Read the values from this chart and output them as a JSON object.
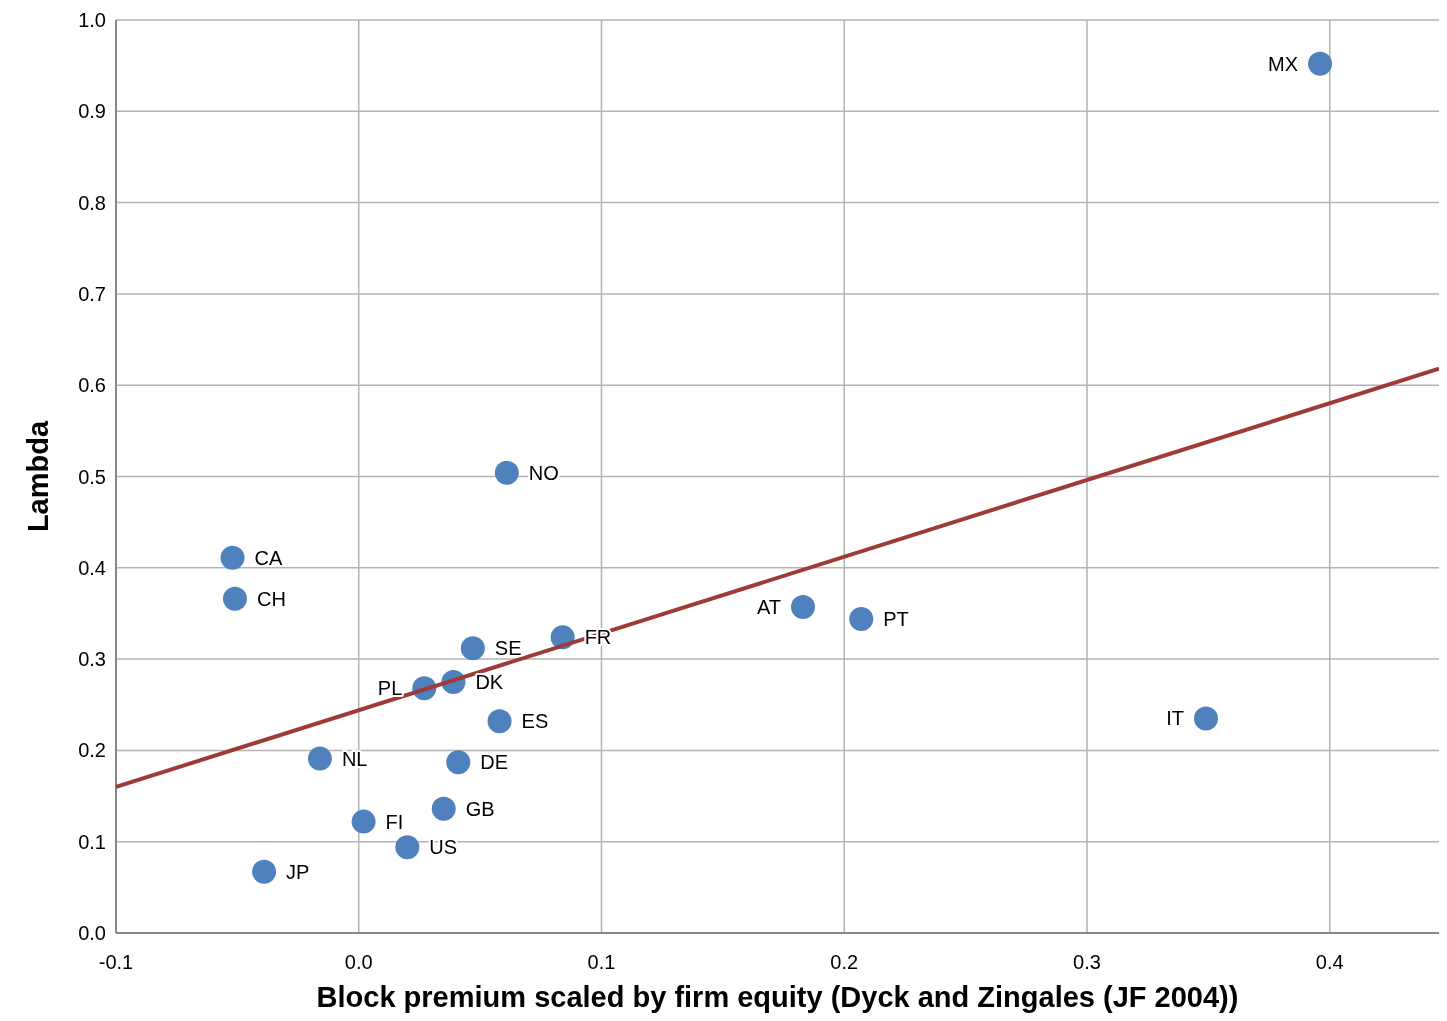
{
  "chart_data": {
    "type": "scatter",
    "xlabel": "Block premium scaled by firm equity (Dyck and Zingales (JF 2004))",
    "ylabel": "Lambda",
    "series": [
      {
        "color": "#4f81bd",
        "x": [
          0.396,
          0.061,
          -0.052,
          -0.051,
          0.183,
          0.207,
          0.084,
          0.047,
          0.027,
          0.039,
          0.058,
          0.041,
          -0.016,
          0.002,
          0.035,
          0.02,
          -0.039,
          0.349
        ],
        "values": [
          0.952,
          0.504,
          0.411,
          0.366,
          0.357,
          0.344,
          0.324,
          0.312,
          0.268,
          0.275,
          0.232,
          0.187,
          0.191,
          0.122,
          0.136,
          0.094,
          0.067,
          0.235
        ]
      },
      {
        "type": "line",
        "marker": "none",
        "color": "#9e3a38",
        "x": [
          -0.1,
          0.445
        ],
        "values": [
          0.16,
          0.618
        ]
      }
    ],
    "annotations": [
      {
        "text": "MX",
        "x": 0.396,
        "y": 0.952
      },
      {
        "text": "NO",
        "x": 0.061,
        "y": 0.504
      },
      {
        "text": "CA",
        "x": -0.052,
        "y": 0.411
      },
      {
        "text": "CH",
        "x": -0.051,
        "y": 0.366
      },
      {
        "text": "AT",
        "x": 0.183,
        "y": 0.357
      },
      {
        "text": "PT",
        "x": 0.207,
        "y": 0.344
      },
      {
        "text": "FR",
        "x": 0.084,
        "y": 0.324
      },
      {
        "text": "SE",
        "x": 0.047,
        "y": 0.312
      },
      {
        "text": "PL",
        "x": 0.027,
        "y": 0.268
      },
      {
        "text": "DK",
        "x": 0.039,
        "y": 0.275
      },
      {
        "text": "ES",
        "x": 0.058,
        "y": 0.232
      },
      {
        "text": "DE",
        "x": 0.041,
        "y": 0.187
      },
      {
        "text": "NL",
        "x": -0.016,
        "y": 0.191
      },
      {
        "text": "FI",
        "x": 0.002,
        "y": 0.122
      },
      {
        "text": "GB",
        "x": 0.035,
        "y": 0.136
      },
      {
        "text": "US",
        "x": 0.02,
        "y": 0.094
      },
      {
        "text": "JP",
        "x": -0.039,
        "y": 0.067
      },
      {
        "text": "IT",
        "x": 0.349,
        "y": 0.235
      }
    ],
    "xlim": [
      -0.1,
      0.445
    ],
    "xticks": [
      -0.1,
      {
        "value": 0,
        "label": "0.0"
      },
      0.1,
      0.2,
      0.3,
      0.4
    ],
    "ylim": [
      0,
      1
    ],
    "yticks": [
      {
        "value": 0,
        "label": "0.0"
      },
      0.1,
      0.2,
      0.3,
      0.4,
      0.5,
      0.6,
      0.7,
      0.8,
      0.9,
      {
        "value": 1,
        "label": "1.0"
      }
    ],
    "grid": true,
    "marker": "circle"
  }
}
